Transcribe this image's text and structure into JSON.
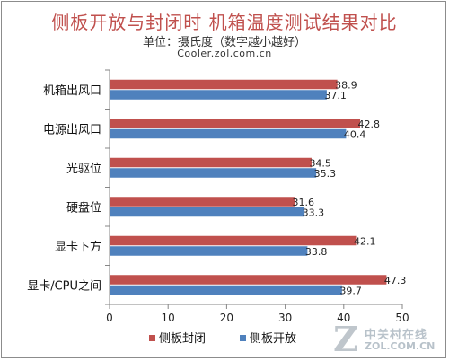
{
  "header": {
    "title": "侧板开放与封闭时 机箱温度测试结果对比",
    "subtitle": "单位：摄氏度（数字越小越好）",
    "source": "Cooler.zol.com.cn"
  },
  "watermark": {
    "cn": "中关村在线",
    "en": "ZOL.COM.CN",
    "mark": "Z"
  },
  "chart_data": {
    "type": "bar",
    "orientation": "horizontal",
    "categories": [
      "机箱出风口",
      "电源出风口",
      "光驱位",
      "硬盘位",
      "显卡下方",
      "显卡/CPU之间"
    ],
    "series": [
      {
        "name": "侧板封闭",
        "color": "#c0504d",
        "values": [
          38.9,
          42.8,
          34.5,
          31.6,
          42.1,
          47.3
        ]
      },
      {
        "name": "侧板开放",
        "color": "#4f81bd",
        "values": [
          37.1,
          40.4,
          35.3,
          33.3,
          33.8,
          39.7
        ]
      }
    ],
    "xlim": [
      0,
      50
    ],
    "xticks": [
      0,
      10,
      20,
      30,
      40,
      50
    ],
    "grid": false,
    "legend": "bottom"
  }
}
